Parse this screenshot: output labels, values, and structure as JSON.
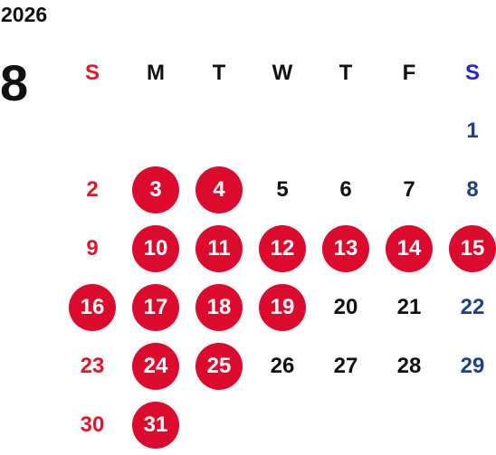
{
  "calendar": {
    "year": "2026",
    "month": "8",
    "weekdays": [
      "S",
      "M",
      "T",
      "W",
      "T",
      "F",
      "S"
    ],
    "colors": {
      "sunday": "#e0162b",
      "saturday_header": "#1f24d6",
      "saturday_day": "#1f3f8c",
      "weekday": "#111111",
      "marked_circle": "#dc0a2d",
      "marked_text": "#ffffff"
    },
    "weeks": [
      [
        null,
        null,
        null,
        null,
        null,
        null,
        {
          "day": "1",
          "marked": false
        }
      ],
      [
        {
          "day": "2",
          "marked": false
        },
        {
          "day": "3",
          "marked": true
        },
        {
          "day": "4",
          "marked": true
        },
        {
          "day": "5",
          "marked": false
        },
        {
          "day": "6",
          "marked": false
        },
        {
          "day": "7",
          "marked": false
        },
        {
          "day": "8",
          "marked": false
        }
      ],
      [
        {
          "day": "9",
          "marked": false
        },
        {
          "day": "10",
          "marked": true
        },
        {
          "day": "11",
          "marked": true
        },
        {
          "day": "12",
          "marked": true
        },
        {
          "day": "13",
          "marked": true
        },
        {
          "day": "14",
          "marked": true
        },
        {
          "day": "15",
          "marked": true
        }
      ],
      [
        {
          "day": "16",
          "marked": true
        },
        {
          "day": "17",
          "marked": true
        },
        {
          "day": "18",
          "marked": true
        },
        {
          "day": "19",
          "marked": true
        },
        {
          "day": "20",
          "marked": false
        },
        {
          "day": "21",
          "marked": false
        },
        {
          "day": "22",
          "marked": false
        }
      ],
      [
        {
          "day": "23",
          "marked": false
        },
        {
          "day": "24",
          "marked": true
        },
        {
          "day": "25",
          "marked": true
        },
        {
          "day": "26",
          "marked": false
        },
        {
          "day": "27",
          "marked": false
        },
        {
          "day": "28",
          "marked": false
        },
        {
          "day": "29",
          "marked": false
        }
      ],
      [
        {
          "day": "30",
          "marked": false
        },
        {
          "day": "31",
          "marked": true
        },
        null,
        null,
        null,
        null,
        null
      ]
    ]
  }
}
